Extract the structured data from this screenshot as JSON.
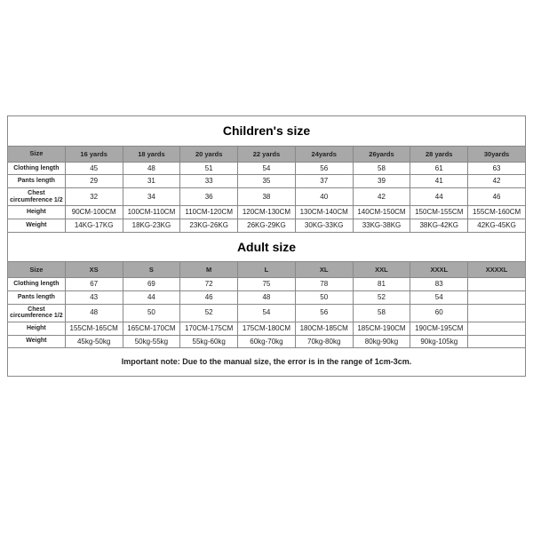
{
  "colors": {
    "border": "#888888",
    "header_bg": "#a8a8a8",
    "bg": "#ffffff",
    "text": "#222222"
  },
  "children": {
    "title": "Children's size",
    "size_label": "Size",
    "headers": [
      "16 yards",
      "18 yards",
      "20 yards",
      "22 yards",
      "24yards",
      "26yards",
      "28 yards",
      "30yards"
    ],
    "rows": [
      {
        "label": "Clothing length",
        "cells": [
          "45",
          "48",
          "51",
          "54",
          "56",
          "58",
          "61",
          "63"
        ]
      },
      {
        "label": "Pants length",
        "cells": [
          "29",
          "31",
          "33",
          "35",
          "37",
          "39",
          "41",
          "42"
        ]
      },
      {
        "label": "Chest circumference 1/2",
        "cells": [
          "32",
          "34",
          "36",
          "38",
          "40",
          "42",
          "44",
          "46"
        ]
      },
      {
        "label": "Height",
        "cells": [
          "90CM-100CM",
          "100CM-110CM",
          "110CM-120CM",
          "120CM-130CM",
          "130CM-140CM",
          "140CM-150CM",
          "150CM-155CM",
          "155CM-160CM"
        ]
      },
      {
        "label": "Weight",
        "cells": [
          "14KG-17KG",
          "18KG-23KG",
          "23KG-26KG",
          "26KG-29KG",
          "30KG-33KG",
          "33KG-38KG",
          "38KG-42KG",
          "42KG-45KG"
        ]
      }
    ]
  },
  "adult": {
    "title": "Adult size",
    "size_label": "Size",
    "headers": [
      "XS",
      "S",
      "M",
      "L",
      "XL",
      "XXL",
      "XXXL",
      "XXXXL"
    ],
    "rows": [
      {
        "label": "Clothing length",
        "cells": [
          "67",
          "69",
          "72",
          "75",
          "78",
          "81",
          "83",
          ""
        ]
      },
      {
        "label": "Pants length",
        "cells": [
          "43",
          "44",
          "46",
          "48",
          "50",
          "52",
          "54",
          ""
        ]
      },
      {
        "label": "Chest circumference 1/2",
        "cells": [
          "48",
          "50",
          "52",
          "54",
          "56",
          "58",
          "60",
          ""
        ]
      },
      {
        "label": "Height",
        "cells": [
          "155CM-165CM",
          "165CM-170CM",
          "170CM-175CM",
          "175CM-180CM",
          "180CM-185CM",
          "185CM-190CM",
          "190CM-195CM",
          ""
        ]
      },
      {
        "label": "Weight",
        "cells": [
          "45kg-50kg",
          "50kg-55kg",
          "55kg-60kg",
          "60kg-70kg",
          "70kg-80kg",
          "80kg-90kg",
          "90kg-105kg",
          ""
        ]
      }
    ]
  },
  "note": "Important note: Due to the manual size, the error is in the range of 1cm-3cm."
}
